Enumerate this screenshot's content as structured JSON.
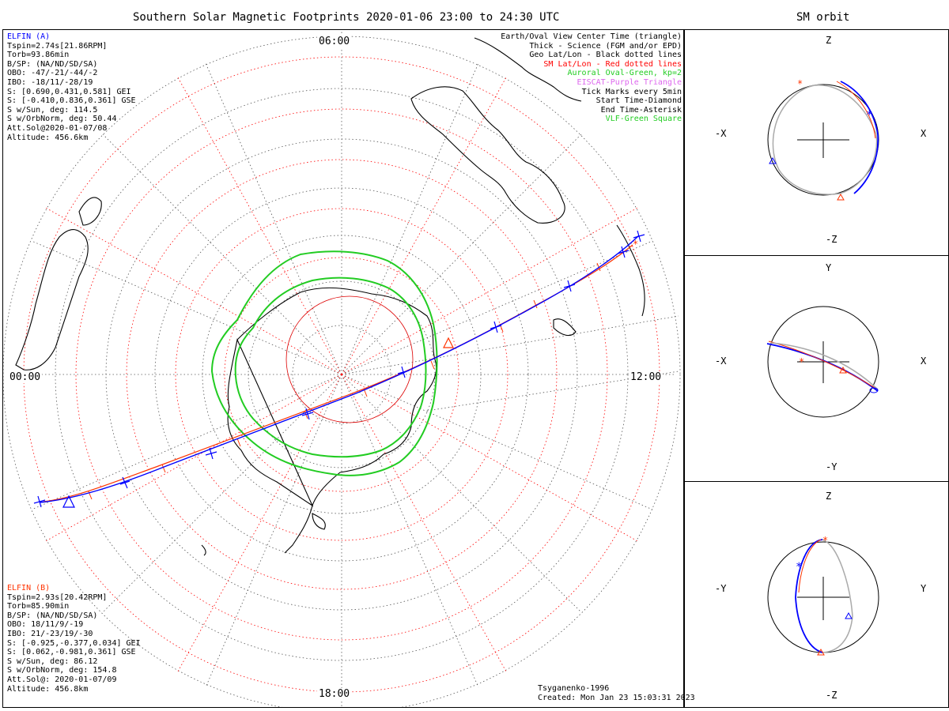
{
  "main_title": "Southern Solar Magnetic Footprints 2020-01-06 23:00 to 24:30 UTC",
  "side_title": "SM orbit",
  "mlt_labels": {
    "top": "06:00",
    "left": "00:00",
    "right": "12:00",
    "bottom": "18:00"
  },
  "elfin_a": {
    "name": "ELFIN (A)",
    "lines": [
      "Tspin=2.74s[21.86RPM]",
      "Torb=93.86min",
      "B/SP: (NA/ND/SD/SA)",
      "OBO: -47/-21/-44/-2",
      "IBO: -18/11/-28/19",
      "S: [0.690,0.431,0.581] GEI",
      "S: [-0.410,0.836,0.361] GSE",
      "S w/Sun, deg: 114.5",
      "S w/OrbNorm, deg: 50.44",
      "Att.Sol@2020-01-07/08",
      "Altitude: 456.6km"
    ]
  },
  "elfin_b": {
    "name": "ELFIN (B)",
    "lines": [
      "Tspin=2.93s[20.42RPM]",
      "Torb=85.90min",
      "B/SP: (NA/ND/SD/SA)",
      "OBO: 18/11/9/-19",
      "IBO: 21/-23/19/-30",
      "S: [-0.925,-0.377,0.034] GEI",
      "S: [0.062,-0.981,0.361] GSE",
      "S w/Sun, deg: 86.12",
      "S w/OrbNorm, deg: 154.8",
      "Att.Sol@: 2020-01-07/09",
      "Altitude: 456.8km"
    ]
  },
  "legend": [
    {
      "text": "Earth/Oval View Center Time (triangle)",
      "color": "#000000"
    },
    {
      "text": "Thick - Science (FGM and/or EPD)",
      "color": "#000000"
    },
    {
      "text": "Geo Lat/Lon - Black dotted lines",
      "color": "#000000"
    },
    {
      "text": "SM Lat/Lon - Red dotted lines",
      "color": "#ff0000"
    },
    {
      "text": "Auroral Oval-Green, kp=2",
      "color": "#22cc22"
    },
    {
      "text": "EISCAT-Purple Triangle",
      "color": "#dd66ee"
    },
    {
      "text": "Tick Marks every 5min",
      "color": "#000000"
    },
    {
      "text": "Start Time-Diamond",
      "color": "#000000"
    },
    {
      "text": "End Time-Asterisk",
      "color": "#000000"
    },
    {
      "text": "VLF-Green Square",
      "color": "#22cc22"
    }
  ],
  "footer": {
    "model": "Tsyganenko-1996",
    "created": "Created: Mon Jan 23 15:03:31 2023"
  },
  "orbit_panels": [
    {
      "top": "Z",
      "bottom": "-Z",
      "left": "-X",
      "right": "X"
    },
    {
      "top": "Y",
      "bottom": "-Y",
      "left": "-X",
      "right": "X"
    },
    {
      "top": "Z",
      "bottom": "-Z",
      "left": "-Y",
      "right": "Y"
    }
  ],
  "colors": {
    "elfin_a": "#0000ff",
    "elfin_b": "#ff0000",
    "oval": "#22cc22",
    "sm_grid": "#ff0000",
    "orbit_gray": "#aaaaaa"
  }
}
